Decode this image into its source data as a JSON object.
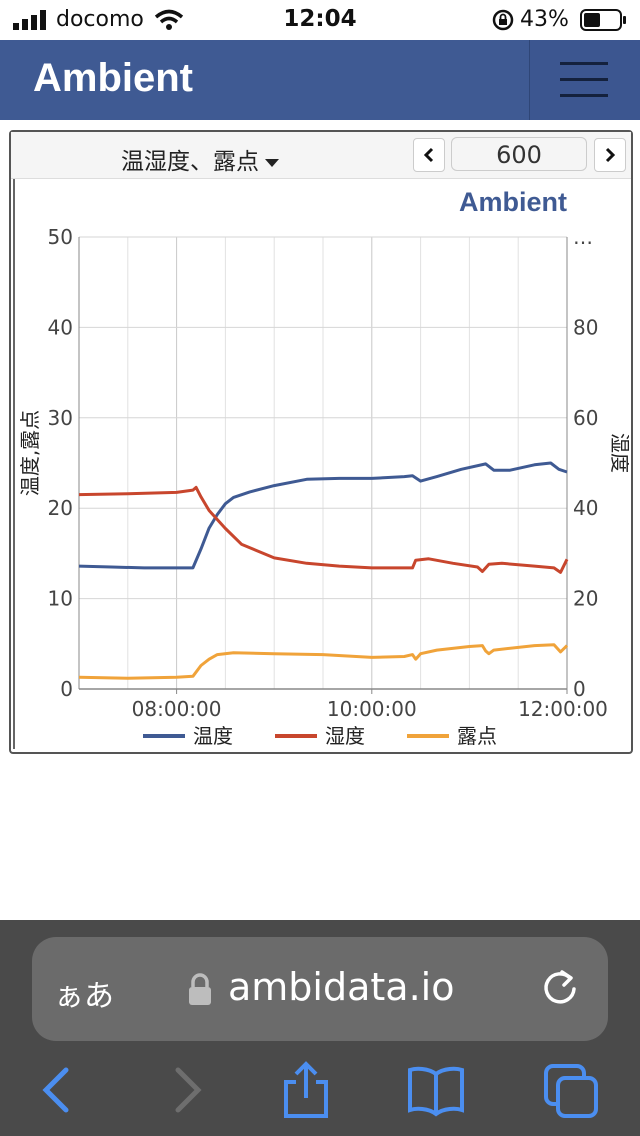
{
  "status": {
    "carrier": "docomo",
    "time": "12:04",
    "battery": "43%"
  },
  "navbar": {
    "brand": "Ambient"
  },
  "card": {
    "selector": "温湿度、露点",
    "count": "600"
  },
  "chart_data": {
    "type": "line",
    "watermark": "Ambient",
    "ylabel_left": "温度,露点",
    "ylabel_right": "湿度",
    "yleft_range": [
      0,
      50
    ],
    "yleft_ticks": [
      "0",
      "10",
      "20",
      "30",
      "40",
      "50"
    ],
    "yright_range": [
      0,
      100
    ],
    "yright_ticks": [
      "0",
      "20",
      "40",
      "60",
      "80",
      "…"
    ],
    "x_range_min": [
      420,
      720
    ],
    "x_ticks": [
      {
        "t": 480,
        "label": "08:00:00"
      },
      {
        "t": 600,
        "label": "10:00:00"
      },
      {
        "t": 720,
        "label": "12:00:00"
      }
    ],
    "legend": [
      "温度",
      "湿度",
      "露点"
    ],
    "colors": {
      "温度": "#3f5a93",
      "湿度": "#c8462d",
      "露点": "#f0a33a"
    },
    "series": [
      {
        "name": "温度",
        "axis": "left",
        "color": "#3f5a93",
        "points": [
          [
            420,
            13.6
          ],
          [
            440,
            13.5
          ],
          [
            460,
            13.4
          ],
          [
            490,
            13.4
          ],
          [
            495,
            15.5
          ],
          [
            500,
            17.8
          ],
          [
            505,
            19.3
          ],
          [
            510,
            20.5
          ],
          [
            515,
            21.2
          ],
          [
            525,
            21.8
          ],
          [
            540,
            22.5
          ],
          [
            560,
            23.2
          ],
          [
            580,
            23.3
          ],
          [
            600,
            23.3
          ],
          [
            620,
            23.5
          ],
          [
            625,
            23.6
          ],
          [
            630,
            23.0
          ],
          [
            640,
            23.5
          ],
          [
            655,
            24.3
          ],
          [
            670,
            24.9
          ],
          [
            675,
            24.2
          ],
          [
            685,
            24.2
          ],
          [
            700,
            24.8
          ],
          [
            710,
            25.0
          ],
          [
            715,
            24.3
          ],
          [
            720,
            24.0
          ]
        ]
      },
      {
        "name": "湿度",
        "axis": "right",
        "color": "#c8462d",
        "points": [
          [
            420,
            43.0
          ],
          [
            450,
            43.2
          ],
          [
            480,
            43.5
          ],
          [
            490,
            44.0
          ],
          [
            492,
            44.6
          ],
          [
            495,
            42.5
          ],
          [
            500,
            39.5
          ],
          [
            510,
            35.5
          ],
          [
            520,
            32.0
          ],
          [
            530,
            30.5
          ],
          [
            540,
            29.0
          ],
          [
            560,
            27.8
          ],
          [
            580,
            27.2
          ],
          [
            600,
            26.8
          ],
          [
            615,
            26.8
          ],
          [
            625,
            26.8
          ],
          [
            627,
            28.5
          ],
          [
            635,
            28.8
          ],
          [
            650,
            27.8
          ],
          [
            665,
            27.0
          ],
          [
            668,
            26.0
          ],
          [
            672,
            27.6
          ],
          [
            680,
            27.8
          ],
          [
            700,
            27.2
          ],
          [
            712,
            26.8
          ],
          [
            716,
            25.8
          ],
          [
            720,
            28.7
          ]
        ]
      },
      {
        "name": "露点",
        "axis": "left",
        "color": "#f0a33a",
        "points": [
          [
            420,
            1.3
          ],
          [
            450,
            1.2
          ],
          [
            480,
            1.3
          ],
          [
            490,
            1.4
          ],
          [
            495,
            2.6
          ],
          [
            500,
            3.3
          ],
          [
            505,
            3.8
          ],
          [
            515,
            4.0
          ],
          [
            540,
            3.9
          ],
          [
            570,
            3.8
          ],
          [
            600,
            3.5
          ],
          [
            620,
            3.6
          ],
          [
            625,
            3.8
          ],
          [
            627,
            3.3
          ],
          [
            630,
            3.9
          ],
          [
            640,
            4.3
          ],
          [
            660,
            4.7
          ],
          [
            668,
            4.8
          ],
          [
            670,
            4.2
          ],
          [
            672,
            3.9
          ],
          [
            675,
            4.3
          ],
          [
            700,
            4.8
          ],
          [
            712,
            4.9
          ],
          [
            716,
            4.1
          ],
          [
            720,
            4.8
          ]
        ]
      }
    ]
  },
  "safari": {
    "aa": "ぁあ",
    "url": "ambidata.io"
  }
}
